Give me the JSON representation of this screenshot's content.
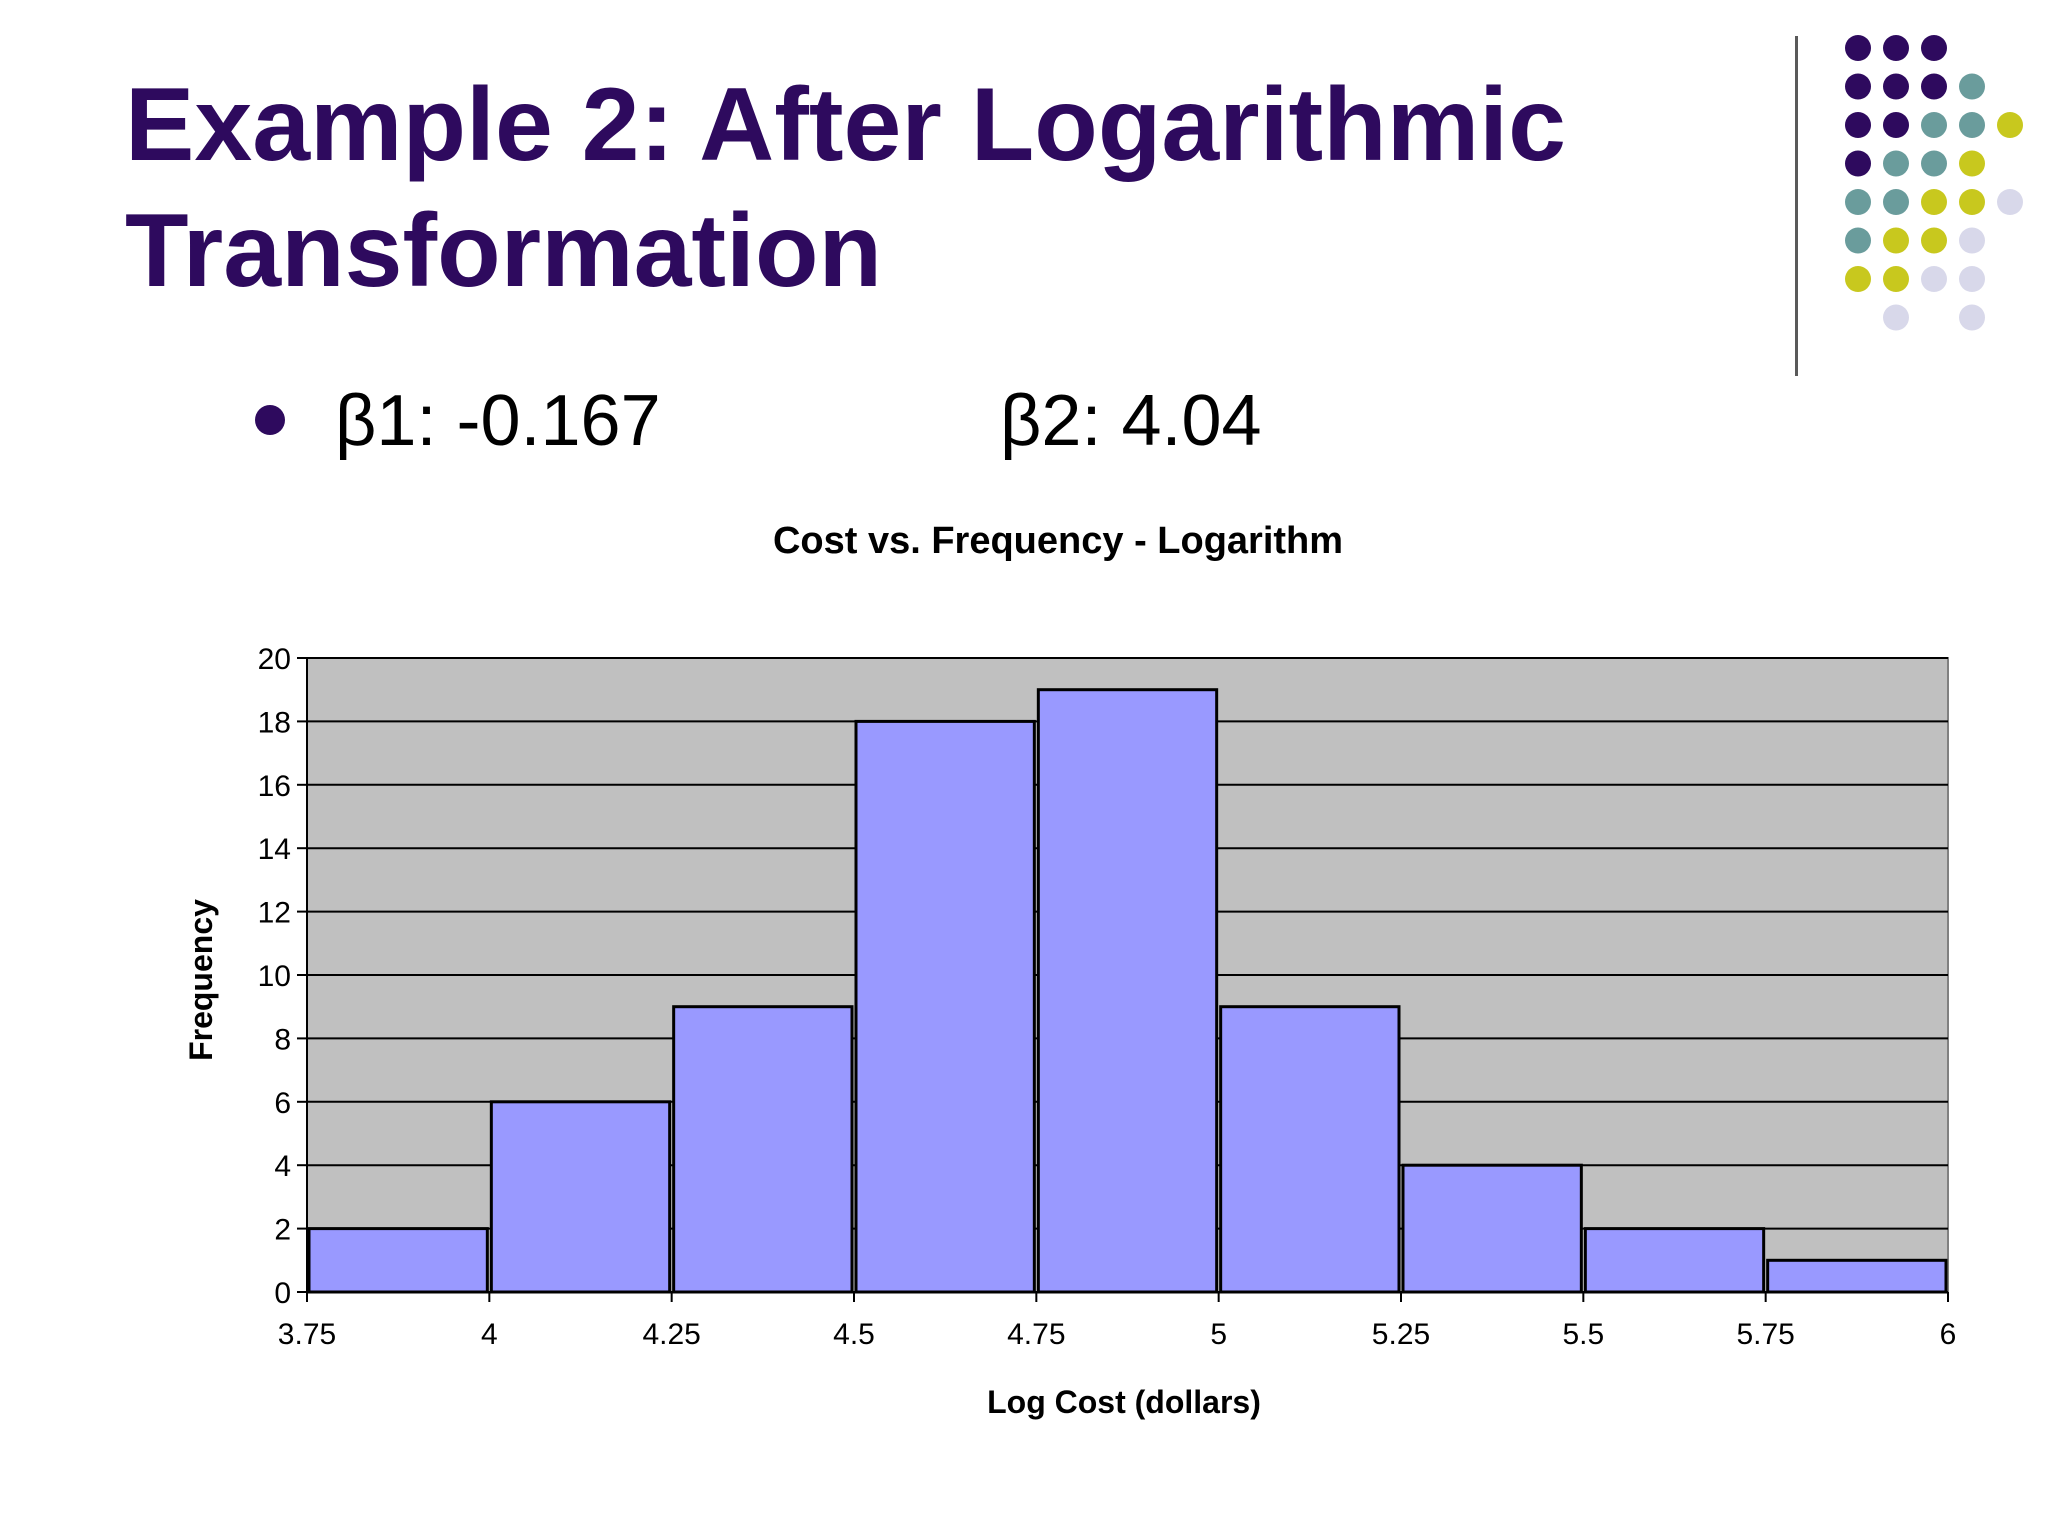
{
  "slide": {
    "title_line1": "Example 2: After Logarithmic",
    "title_line2": "Transformation",
    "bullet_b1": "β1: -0.167",
    "bullet_b2": "β2: 4.04",
    "title_color": "#2e0a5e"
  },
  "decor": {
    "dot_colors": {
      "purple": "#2e0a5e",
      "teal": "#6a9c9c",
      "olive": "#c8c81e",
      "lavender": "#d8d8ea"
    }
  },
  "chart_data": {
    "type": "bar",
    "title": "Cost vs. Frequency - Logarithm",
    "xlabel": "Log Cost (dollars)",
    "ylabel": "Frequency",
    "bin_edges": [
      3.75,
      4,
      4.25,
      4.5,
      4.75,
      5,
      5.25,
      5.5,
      5.75,
      6
    ],
    "x_tick_labels": [
      "3.75",
      "4",
      "4.25",
      "4.5",
      "4.75",
      "5",
      "5.25",
      "5.5",
      "5.75",
      "6"
    ],
    "values": [
      2,
      6,
      9,
      18,
      19,
      9,
      4,
      2,
      1
    ],
    "y_ticks": [
      0,
      2,
      4,
      6,
      8,
      10,
      12,
      14,
      16,
      18,
      20
    ],
    "ylim": [
      0,
      20
    ],
    "xlim": [
      3.75,
      6
    ],
    "grid": true,
    "colors": {
      "bar": "#9999ff",
      "plot_bg": "#c0c0c0",
      "grid": "#000000"
    }
  }
}
